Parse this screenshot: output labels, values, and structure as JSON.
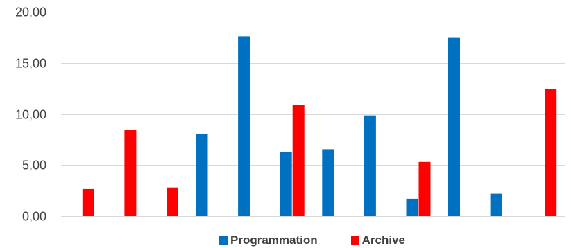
{
  "chart_data": {
    "type": "bar",
    "categories": [
      "",
      "",
      "",
      "",
      "",
      "",
      "",
      "",
      "",
      "",
      "",
      ""
    ],
    "series": [
      {
        "name": "Programmation",
        "color": "#0070C0",
        "values": [
          null,
          null,
          null,
          8.0,
          17.6,
          6.25,
          6.55,
          9.85,
          1.7,
          17.45,
          2.2,
          null
        ]
      },
      {
        "name": "Archive",
        "color": "#FF0000",
        "values": [
          2.65,
          8.45,
          2.8,
          null,
          null,
          10.9,
          null,
          null,
          5.3,
          null,
          null,
          12.45
        ]
      }
    ],
    "yticks": [
      "0,00",
      "5,00",
      "10,00",
      "15,00",
      "20,00"
    ],
    "ylim": [
      0,
      20
    ],
    "grid": true,
    "legend_position": "bottom"
  }
}
